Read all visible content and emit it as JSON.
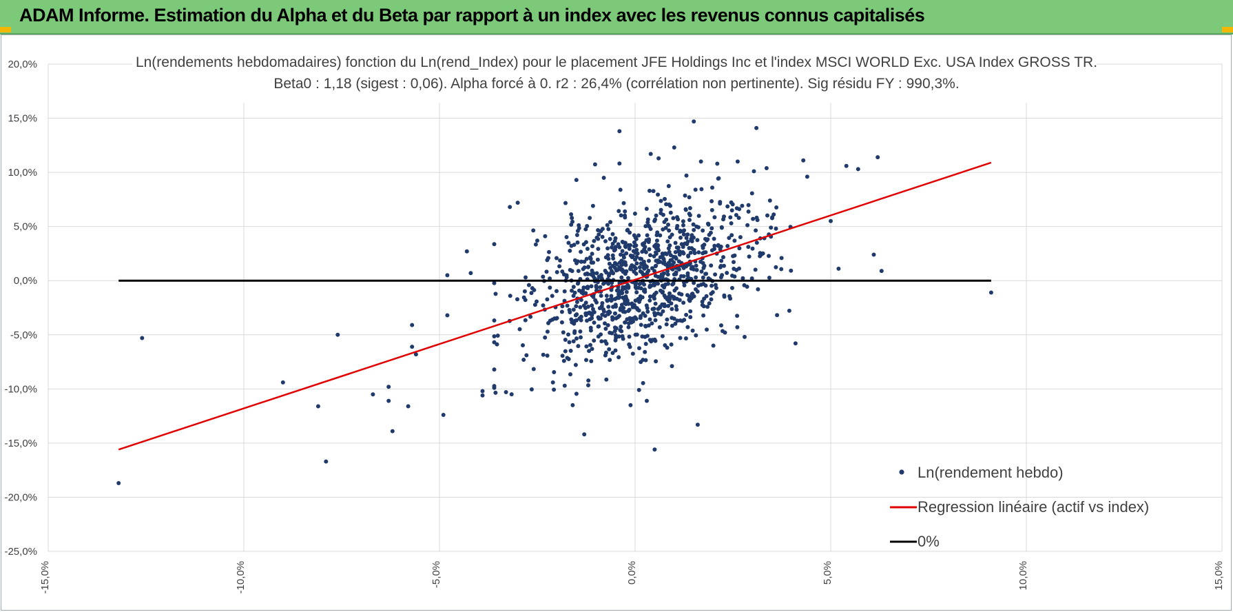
{
  "header": {
    "title": "ADAM Informe. Estimation du Alpha et du Beta par rapport à un index avec les revenus connus capitalisés"
  },
  "colors": {
    "header_bg": "#7dc97a",
    "points": "#1f3a6b",
    "regression": "#e00000",
    "zero_line": "#000000",
    "grid": "#d9d9d9",
    "corner": "#f2b705"
  },
  "chart_data": {
    "type": "scatter",
    "title": "Ln(rendements hebdomadaires) fonction du Ln(rend_Index) pour le placement JFE Holdings Inc et l'index MSCI WORLD Exc. USA Index GROSS TR.",
    "subtitle": "Beta0 : 1,18 (sigest : 0,06).  Alpha forcé à 0. r2 : 26,4% (corrélation non pertinente). Sig résidu FY : 990,3%.",
    "xlabel": "",
    "ylabel": "",
    "xlim": [
      -15,
      15
    ],
    "ylim": [
      -25,
      20
    ],
    "x_ticks": [
      -15,
      -10,
      -5,
      0,
      5,
      10,
      15
    ],
    "y_ticks": [
      20,
      15,
      10,
      5,
      0,
      -5,
      -10,
      -15,
      -20,
      -25
    ],
    "x_tick_labels": [
      "-15,0%",
      "-10,0%",
      "-5,0%",
      "0,0%",
      "5,0%",
      "10,0%",
      "15,0%"
    ],
    "y_tick_labels": [
      "20,0%",
      "15,0%",
      "10,0%",
      "5,0%",
      "0,0%",
      "-5,0%",
      "-10,0%",
      "-15,0%",
      "-20,0%",
      "-25,0%"
    ],
    "grid": true,
    "legend_position": "bottom-right",
    "series": [
      {
        "name": "Ln(rendement hebdo)",
        "kind": "scatter",
        "color": "#1f3a6b",
        "x": [
          -13.2,
          -12.6,
          -9,
          -7.9,
          -7.6,
          -8.1,
          -6.7,
          -6.3,
          -6.3,
          -6.2,
          -5.7,
          -5.7,
          -5.6,
          -5.8,
          -4.9,
          -4.8,
          -4.8,
          -4.3,
          -4.2,
          -3.9,
          -3.9,
          -3.6,
          -3.6,
          -3.3,
          -3.2,
          -3.0,
          -2.8,
          -2.5,
          -2.3,
          -2.1,
          -1.8,
          -1.5,
          -1.3,
          -1.1,
          0.4,
          0.6,
          1.0,
          1.5,
          2.1,
          3.1,
          3.2,
          3.6,
          4.1,
          4.3,
          4.4,
          5.0,
          5.2,
          5.4,
          5.7,
          6.1,
          6.2,
          6.3,
          9.1,
          -0.8,
          -0.4,
          0.3,
          0.5,
          0.1,
          1.6,
          2.0,
          2.8
        ],
        "y": [
          -18.7,
          -5.3,
          -9.4,
          -16.7,
          -5.0,
          -11.6,
          -10.5,
          -9.8,
          -11.1,
          -13.9,
          -4.1,
          -6.1,
          -6.8,
          -11.6,
          -12.4,
          0.5,
          -3.2,
          2.7,
          0.7,
          -10.2,
          -10.6,
          -9.9,
          -8.2,
          -10.3,
          6.8,
          7.2,
          0.3,
          3.7,
          4.1,
          -9.4,
          -9.7,
          9.3,
          -14.2,
          -6.3,
          11.7,
          11.3,
          12.3,
          14.7,
          10.8,
          14.1,
          3.9,
          4.8,
          -5.8,
          11.1,
          9.6,
          5.5,
          1.1,
          10.6,
          10.3,
          2.4,
          11.4,
          0.9,
          -1.1,
          9.5,
          13.8,
          -11.1,
          -15.6,
          -10.1,
          -13.3,
          -6.0,
          -5.2
        ],
        "cluster": {
          "n": 1050,
          "seed": 7,
          "x_mean": 0.2,
          "x_std": 1.45,
          "slope": 1.05,
          "residual_std": 3.4,
          "x_clip": [
            -3.6,
            4.2
          ],
          "y_clip": [
            -11.5,
            11.0
          ]
        }
      },
      {
        "name": "Regression linéaire (actif vs index)",
        "kind": "line",
        "color": "#e00000",
        "x": [
          -13.2,
          9.1
        ],
        "y": [
          -15.6,
          10.9
        ]
      },
      {
        "name": "0%",
        "kind": "line",
        "color": "#000000",
        "x": [
          -13.2,
          9.1
        ],
        "y": [
          0,
          0
        ]
      }
    ]
  }
}
